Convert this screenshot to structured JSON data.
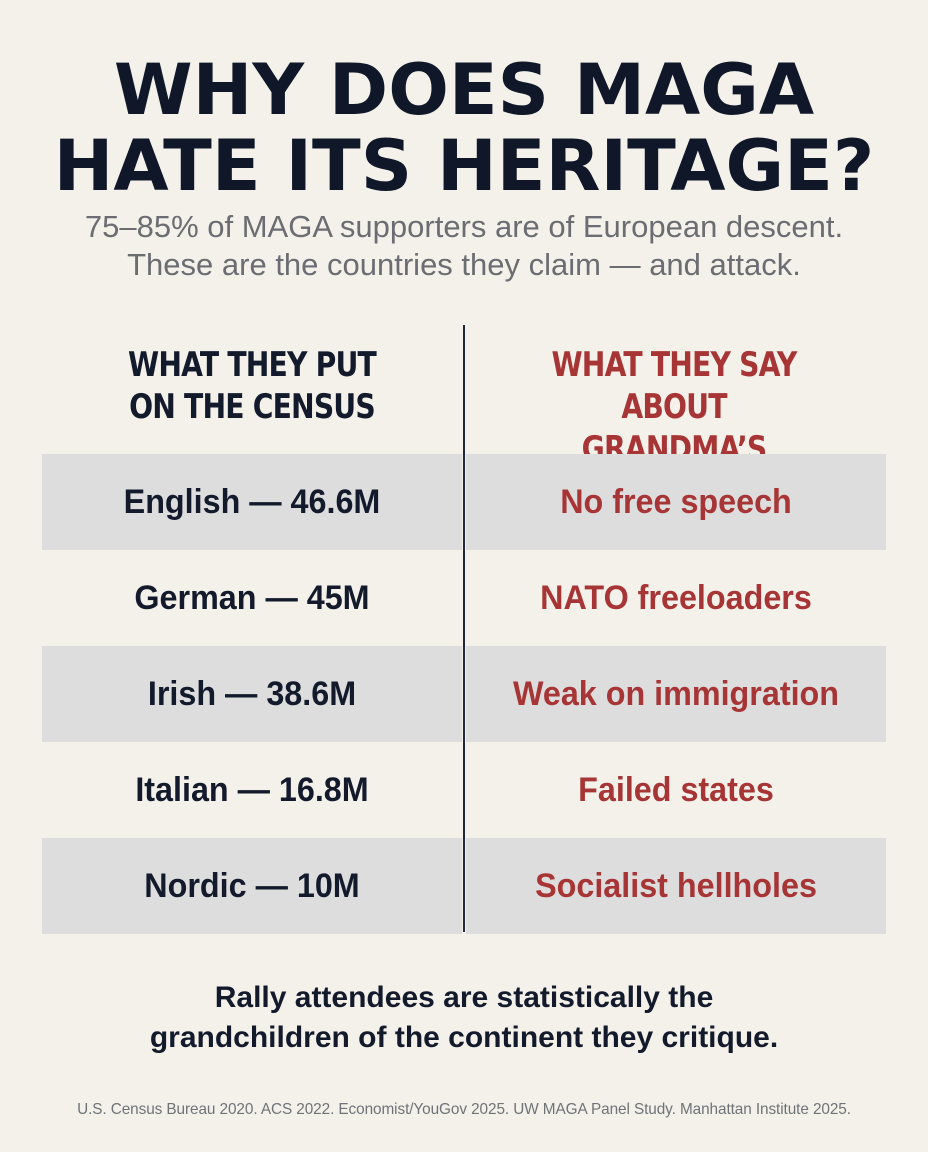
{
  "title": {
    "line1": "WHY DOES MAGA",
    "line2": "HATE ITS HERITAGE?"
  },
  "subtitle": {
    "line1": "75–85% of MAGA supporters are of European descent.",
    "line2": "These are the countries they claim — and attack."
  },
  "columns": {
    "left": {
      "line1": "WHAT THEY PUT",
      "line2": "ON THE CENSUS"
    },
    "right": {
      "line1": "WHAT THEY SAY ABOUT",
      "line2": "GRANDMA’S COUNTRY"
    }
  },
  "rows": [
    {
      "census": "English — 46.6M",
      "claim": "No free speech"
    },
    {
      "census": "German — 45M",
      "claim": "NATO freeloaders"
    },
    {
      "census": "Irish — 38.6M",
      "claim": "Weak on immigration"
    },
    {
      "census": "Italian — 16.8M",
      "claim": "Failed states"
    },
    {
      "census": "Nordic — 10M",
      "claim": "Socialist hellholes"
    }
  ],
  "conclusion": {
    "line1": "Rally attendees are statistically the",
    "line2": "grandchildren of the continent they critique."
  },
  "sources": "U.S. Census Bureau 2020. ACS 2022. Economist/YouGov 2025. UW MAGA Panel Study. Manhattan Institute 2025.",
  "colors": {
    "background": "#f3f1e9",
    "navy": "#121a2c",
    "red": "#a73536",
    "gray_text": "#6b6d72",
    "shaded_row": "#dddddd"
  }
}
